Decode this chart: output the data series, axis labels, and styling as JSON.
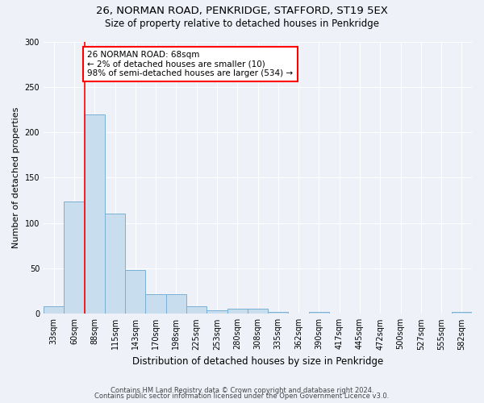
{
  "title1": "26, NORMAN ROAD, PENKRIDGE, STAFFORD, ST19 5EX",
  "title2": "Size of property relative to detached houses in Penkridge",
  "xlabel": "Distribution of detached houses by size in Penkridge",
  "ylabel": "Number of detached properties",
  "bar_color": "#c8dded",
  "bar_edge_color": "#7aafd4",
  "categories": [
    "33sqm",
    "60sqm",
    "88sqm",
    "115sqm",
    "143sqm",
    "170sqm",
    "198sqm",
    "225sqm",
    "253sqm",
    "280sqm",
    "308sqm",
    "335sqm",
    "362sqm",
    "390sqm",
    "417sqm",
    "445sqm",
    "472sqm",
    "500sqm",
    "527sqm",
    "555sqm",
    "582sqm"
  ],
  "values": [
    8,
    124,
    220,
    110,
    48,
    22,
    22,
    8,
    4,
    6,
    6,
    2,
    0,
    2,
    0,
    0,
    0,
    0,
    0,
    0,
    2
  ],
  "ylim": [
    0,
    300
  ],
  "yticks": [
    0,
    50,
    100,
    150,
    200,
    250,
    300
  ],
  "vline_color": "red",
  "vline_x": 1.5,
  "annotation_text": "26 NORMAN ROAD: 68sqm\n← 2% of detached houses are smaller (10)\n98% of semi-detached houses are larger (534) →",
  "annotation_box_color": "white",
  "annotation_box_edge_color": "red",
  "footer1": "Contains HM Land Registry data © Crown copyright and database right 2024.",
  "footer2": "Contains public sector information licensed under the Open Government Licence v3.0.",
  "background_color": "#eef2f8",
  "grid_color": "white",
  "title1_fontsize": 9.5,
  "title2_fontsize": 8.5,
  "ylabel_fontsize": 8,
  "xlabel_fontsize": 8.5,
  "tick_fontsize": 7,
  "annotation_fontsize": 7.5,
  "footer_fontsize": 6
}
